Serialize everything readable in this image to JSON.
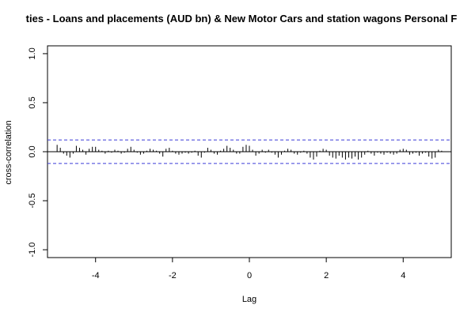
{
  "chart_data": {
    "type": "bar",
    "subtype": "cross-correlation",
    "title": "ties - Loans and placements (AUD bn) & New Motor Cars and station wagons Personal F",
    "xlabel": "Lag",
    "ylabel": "cross-correlation",
    "xlim": [
      -5.25,
      5.25
    ],
    "ylim": [
      -1.08,
      1.08
    ],
    "x_ticks": [
      -4,
      -2,
      0,
      2,
      4
    ],
    "x_tick_labels": [
      "-4",
      "-2",
      "0",
      "2",
      "4"
    ],
    "y_ticks": [
      -1.0,
      -0.5,
      0.0,
      0.5,
      1.0
    ],
    "y_tick_labels": [
      "-1.0",
      "-0.5",
      "0.0",
      "0.5",
      "1.0"
    ],
    "confidence_bounds": [
      0.12,
      -0.12
    ],
    "colors": {
      "bars": "#000000",
      "bounds": "#3b3bd6",
      "zero": "#000000"
    },
    "lags": [
      -5.0,
      -4.917,
      -4.833,
      -4.75,
      -4.667,
      -4.583,
      -4.5,
      -4.417,
      -4.333,
      -4.25,
      -4.167,
      -4.083,
      -4.0,
      -3.917,
      -3.833,
      -3.75,
      -3.667,
      -3.583,
      -3.5,
      -3.417,
      -3.333,
      -3.25,
      -3.167,
      -3.083,
      -3.0,
      -2.917,
      -2.833,
      -2.75,
      -2.667,
      -2.583,
      -2.5,
      -2.417,
      -2.333,
      -2.25,
      -2.167,
      -2.083,
      -2.0,
      -1.917,
      -1.833,
      -1.75,
      -1.667,
      -1.583,
      -1.5,
      -1.417,
      -1.333,
      -1.25,
      -1.167,
      -1.083,
      -1.0,
      -0.917,
      -0.833,
      -0.75,
      -0.667,
      -0.583,
      -0.5,
      -0.417,
      -0.333,
      -0.25,
      -0.167,
      -0.083,
      0.0,
      0.083,
      0.167,
      0.25,
      0.333,
      0.417,
      0.5,
      0.583,
      0.667,
      0.75,
      0.833,
      0.917,
      1.0,
      1.083,
      1.167,
      1.25,
      1.333,
      1.417,
      1.5,
      1.583,
      1.667,
      1.75,
      1.833,
      1.917,
      2.0,
      2.083,
      2.167,
      2.25,
      2.333,
      2.417,
      2.5,
      2.583,
      2.667,
      2.75,
      2.833,
      2.917,
      3.0,
      3.083,
      3.167,
      3.25,
      3.333,
      3.417,
      3.5,
      3.583,
      3.667,
      3.75,
      3.833,
      3.917,
      4.0,
      4.083,
      4.167,
      4.25,
      4.333,
      4.417,
      4.5,
      4.583,
      4.667,
      4.75,
      4.833,
      4.917,
      5.0
    ],
    "values": [
      0.07,
      0.04,
      -0.02,
      -0.04,
      -0.06,
      -0.02,
      0.06,
      0.04,
      0.02,
      -0.03,
      0.03,
      0.05,
      0.05,
      0.02,
      0.01,
      -0.02,
      0.01,
      -0.01,
      0.02,
      0.01,
      -0.02,
      -0.01,
      0.03,
      0.05,
      0.02,
      -0.01,
      -0.03,
      -0.02,
      0.01,
      0.03,
      0.02,
      0.01,
      -0.02,
      -0.05,
      0.03,
      0.04,
      0.01,
      -0.02,
      -0.03,
      -0.02,
      -0.01,
      -0.02,
      -0.01,
      0.01,
      -0.04,
      -0.06,
      -0.01,
      0.04,
      0.02,
      -0.02,
      -0.03,
      0.01,
      0.03,
      0.06,
      0.04,
      0.02,
      -0.02,
      -0.02,
      0.05,
      0.07,
      0.06,
      0.02,
      -0.04,
      -0.02,
      0.02,
      -0.01,
      0.02,
      -0.01,
      -0.03,
      -0.06,
      -0.03,
      0.01,
      0.03,
      0.02,
      -0.02,
      -0.03,
      -0.01,
      0.01,
      -0.02,
      -0.06,
      -0.08,
      -0.05,
      0.01,
      0.03,
      0.02,
      -0.04,
      -0.06,
      -0.07,
      -0.04,
      -0.06,
      -0.08,
      -0.06,
      -0.07,
      -0.05,
      -0.08,
      -0.06,
      -0.03,
      0.01,
      -0.02,
      -0.04,
      -0.01,
      -0.02,
      -0.03,
      -0.01,
      -0.02,
      -0.03,
      -0.02,
      0.02,
      0.03,
      0.02,
      -0.03,
      -0.02,
      -0.01,
      -0.04,
      -0.02,
      -0.01,
      -0.05,
      -0.07,
      -0.06,
      0.02,
      0.01
    ]
  }
}
